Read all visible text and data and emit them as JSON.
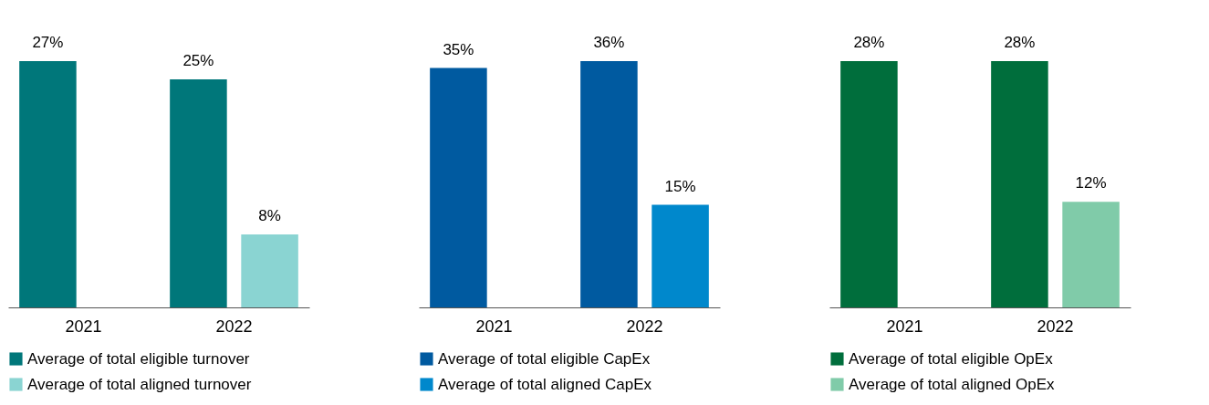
{
  "chart_data": [
    {
      "type": "bar",
      "categories": [
        "2021",
        "2022"
      ],
      "legend": "bottom",
      "series": [
        {
          "name": "Average of total eligible turnover",
          "color": "#00777a",
          "values": [
            27,
            25
          ],
          "value_labels": [
            "27%",
            "25%"
          ]
        },
        {
          "name": "Average of total aligned turnover",
          "color": "#8ad4d2",
          "values": [
            null,
            8
          ],
          "value_labels": [
            null,
            "8%"
          ]
        }
      ]
    },
    {
      "type": "bar",
      "categories": [
        "2021",
        "2022"
      ],
      "legend": "bottom",
      "series": [
        {
          "name": "Average of total eligible CapEx",
          "color": "#005aa0",
          "values": [
            35,
            36
          ],
          "value_labels": [
            "35%",
            "36%"
          ]
        },
        {
          "name": "Average of total aligned CapEx",
          "color": "#0088cc",
          "values": [
            null,
            15
          ],
          "value_labels": [
            null,
            "15%"
          ]
        }
      ]
    },
    {
      "type": "bar",
      "categories": [
        "2021",
        "2022"
      ],
      "legend": "bottom",
      "series": [
        {
          "name": "Average of total eligible OpEx",
          "color": "#006e3c",
          "values": [
            28,
            28
          ],
          "value_labels": [
            "28%",
            "28%"
          ]
        },
        {
          "name": "Average of total aligned OpEx",
          "color": "#80cba9",
          "values": [
            null,
            12
          ],
          "value_labels": [
            null,
            "12%"
          ]
        }
      ]
    }
  ]
}
